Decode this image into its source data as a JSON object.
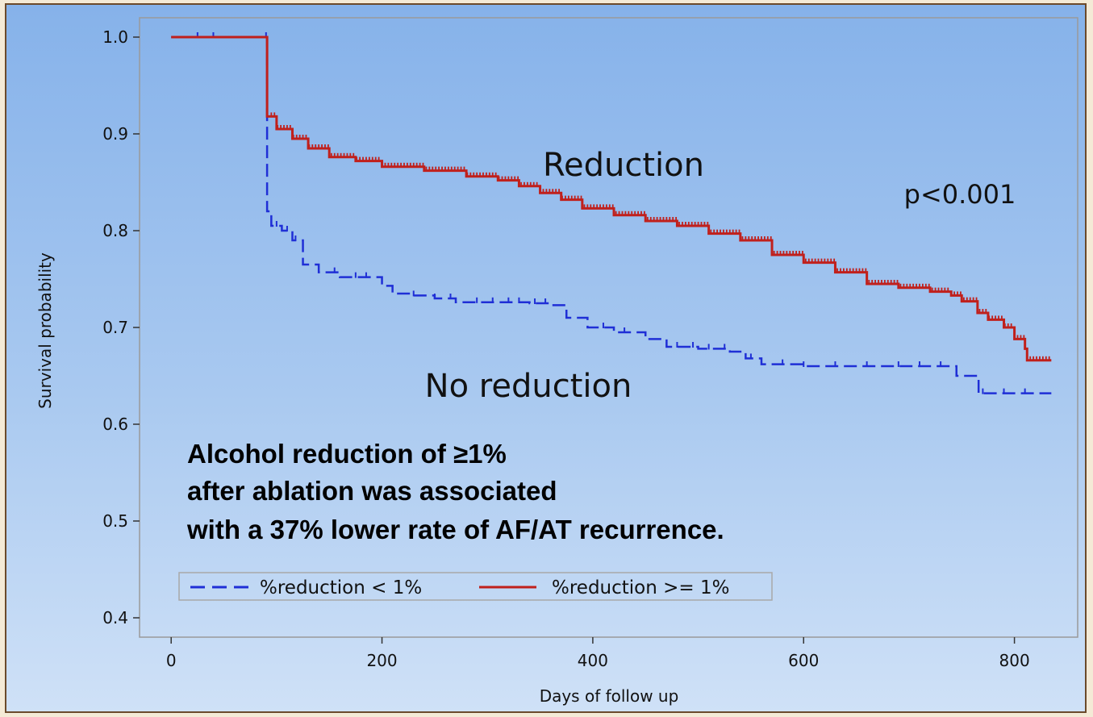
{
  "chart_data": {
    "type": "line",
    "xlabel": "Days of follow up",
    "ylabel": "Survival probability",
    "xlim": [
      -30,
      860
    ],
    "ylim": [
      0.38,
      1.02
    ],
    "x_ticks": [
      0,
      200,
      400,
      600,
      800
    ],
    "x_tick_labels": [
      "0",
      "200",
      "400",
      "600",
      "800"
    ],
    "y_ticks": [
      0.4,
      0.5,
      0.6,
      0.7,
      0.8,
      0.9,
      1.0
    ],
    "y_tick_labels": [
      "0.4",
      "0.5",
      "0.6",
      "0.7",
      "0.8",
      "0.9",
      "1.0"
    ],
    "series": [
      {
        "name": "%reduction < 1%",
        "color": "#1f2fd6",
        "dash": "dashed",
        "points": [
          [
            0,
            1.0
          ],
          [
            90,
            1.0
          ],
          [
            91,
            0.82
          ],
          [
            95,
            0.805
          ],
          [
            105,
            0.8
          ],
          [
            115,
            0.79
          ],
          [
            125,
            0.765
          ],
          [
            140,
            0.757
          ],
          [
            160,
            0.752
          ],
          [
            180,
            0.752
          ],
          [
            200,
            0.743
          ],
          [
            210,
            0.735
          ],
          [
            230,
            0.733
          ],
          [
            250,
            0.73
          ],
          [
            270,
            0.726
          ],
          [
            300,
            0.726
          ],
          [
            340,
            0.725
          ],
          [
            360,
            0.723
          ],
          [
            375,
            0.71
          ],
          [
            395,
            0.7
          ],
          [
            420,
            0.695
          ],
          [
            450,
            0.688
          ],
          [
            470,
            0.68
          ],
          [
            500,
            0.678
          ],
          [
            530,
            0.675
          ],
          [
            545,
            0.668
          ],
          [
            560,
            0.662
          ],
          [
            600,
            0.66
          ],
          [
            650,
            0.66
          ],
          [
            700,
            0.66
          ],
          [
            740,
            0.66
          ],
          [
            745,
            0.65
          ],
          [
            765,
            0.65
          ],
          [
            766,
            0.632
          ],
          [
            800,
            0.632
          ],
          [
            835,
            0.632
          ]
        ],
        "censor_marks_x": [
          25,
          40,
          90,
          95,
          100,
          110,
          118,
          155,
          175,
          185,
          230,
          250,
          265,
          290,
          305,
          320,
          330,
          345,
          355,
          410,
          430,
          470,
          480,
          495,
          510,
          525,
          550,
          580,
          600,
          630,
          660,
          690,
          710,
          730,
          770,
          790,
          810
        ]
      },
      {
        "name": "%reduction >= 1%",
        "color": "#c0201c",
        "dash": "solid",
        "points": [
          [
            0,
            1.0
          ],
          [
            90,
            1.0
          ],
          [
            91,
            0.918
          ],
          [
            100,
            0.905
          ],
          [
            115,
            0.895
          ],
          [
            130,
            0.885
          ],
          [
            150,
            0.876
          ],
          [
            175,
            0.872
          ],
          [
            200,
            0.866
          ],
          [
            240,
            0.862
          ],
          [
            280,
            0.856
          ],
          [
            310,
            0.852
          ],
          [
            330,
            0.846
          ],
          [
            350,
            0.839
          ],
          [
            370,
            0.832
          ],
          [
            390,
            0.823
          ],
          [
            420,
            0.816
          ],
          [
            450,
            0.81
          ],
          [
            480,
            0.805
          ],
          [
            510,
            0.797
          ],
          [
            540,
            0.79
          ],
          [
            570,
            0.775
          ],
          [
            600,
            0.767
          ],
          [
            630,
            0.757
          ],
          [
            660,
            0.745
          ],
          [
            690,
            0.741
          ],
          [
            720,
            0.737
          ],
          [
            740,
            0.733
          ],
          [
            750,
            0.727
          ],
          [
            765,
            0.715
          ],
          [
            775,
            0.708
          ],
          [
            790,
            0.7
          ],
          [
            800,
            0.688
          ],
          [
            810,
            0.678
          ],
          [
            812,
            0.666
          ],
          [
            835,
            0.666
          ]
        ],
        "censor_marks_x": []
      }
    ],
    "annotations": {
      "reduction_label": "Reduction",
      "no_reduction_label": "No reduction",
      "p_value": "p<0.001"
    },
    "callout_lines": [
      "Alcohol reduction of ≥1%",
      "after ablation was associated",
      "with a 37% lower rate of AF/AT recurrence."
    ],
    "legend_position": "bottom-left"
  }
}
